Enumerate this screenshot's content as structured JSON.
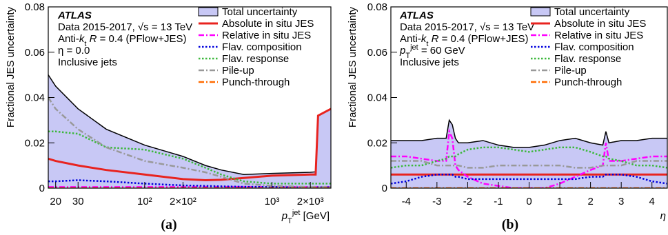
{
  "chart_data": [
    {
      "type": "line",
      "panel_label": "(a)",
      "y_label": "Fractional JES uncertainty",
      "x_label": [
        {
          "text": "p",
          "style": "i"
        },
        {
          "text": "T",
          "style": "sub"
        },
        {
          "text": "jet",
          "style": "sup"
        },
        {
          "text": " [GeV]"
        }
      ],
      "annotations": [
        [
          {
            "text": "ATLAS",
            "style": "bi"
          }
        ],
        "Data 2015-2017, √s = 13 TeV",
        [
          {
            "text": "Anti-"
          },
          {
            "text": "k",
            "style": "i"
          },
          {
            "text": "t",
            "style": "sub"
          },
          {
            "text": " R",
            "style": "i"
          },
          {
            "text": " = 0.4 (PFlow+JES)"
          }
        ],
        "η = 0.0",
        "Inclusive jets"
      ],
      "xscale": "log",
      "xlim": [
        17.5,
        2900
      ],
      "xticks": [
        20,
        30,
        {
          "value": 100,
          "label": "10²"
        },
        {
          "value": 200,
          "label": "2×10²"
        },
        {
          "value": 1000,
          "label": "10³"
        },
        {
          "value": 2000,
          "label": "2×10³"
        }
      ],
      "ylim": [
        0,
        0.08
      ],
      "yticks": [
        0,
        0.02,
        0.04,
        0.06,
        0.08
      ],
      "x": [
        17.5,
        20,
        30,
        50,
        100,
        200,
        300,
        400,
        600,
        1000,
        2000,
        2200,
        2300,
        2900
      ],
      "series": [
        {
          "name": "Total uncertainty",
          "color": "#000000",
          "fill": "#c8c8f5",
          "dash": "solid",
          "values": [
            0.05,
            0.045,
            0.035,
            0.026,
            0.019,
            0.014,
            0.01,
            0.008,
            0.006,
            0.0065,
            0.007,
            0.0072,
            0.032,
            0.035
          ]
        },
        {
          "name": "Absolute in situ JES",
          "color": "#e8231f",
          "dash": "solid",
          "values": [
            0.013,
            0.012,
            0.01,
            0.008,
            0.006,
            0.004,
            0.0035,
            0.0037,
            0.0045,
            0.0055,
            0.006,
            0.006,
            0.032,
            0.035
          ]
        },
        {
          "name": "Relative in situ JES",
          "color": "#ff00ff",
          "dash": "dashdot",
          "values": [
            0.0005,
            0.0005,
            0.0005,
            0.0005,
            0.0005,
            0.0005,
            0.0005,
            0.0005,
            0.0005,
            0.0005,
            0.0005,
            0.0005,
            0.0005,
            0.0005
          ]
        },
        {
          "name": "Flav. composition",
          "color": "#0000dd",
          "dash": "dotted",
          "values": [
            0.003,
            0.003,
            0.0035,
            0.003,
            0.002,
            0.0012,
            0.001,
            0.0008,
            0.0006,
            0.0005,
            0.0004,
            0.0004,
            0.0004,
            0.0004
          ]
        },
        {
          "name": "Flav. response",
          "color": "#3cb83c",
          "dash": "dotted",
          "values": [
            0.025,
            0.025,
            0.024,
            0.018,
            0.017,
            0.013,
            0.009,
            0.006,
            0.003,
            0.002,
            0.002,
            0.002,
            0.002,
            0.002
          ]
        },
        {
          "name": "Pile-up",
          "color": "#999999",
          "dash": "dashdot",
          "values": [
            0.04,
            0.035,
            0.026,
            0.018,
            0.012,
            0.009,
            0.007,
            0.005,
            0.002,
            0.001,
            0.0005,
            0.0005,
            0.0005,
            0.0005
          ]
        },
        {
          "name": "Punch-through",
          "color": "#ff6a00",
          "dash": "dashdot",
          "values": [
            0,
            0,
            0,
            0,
            0,
            0,
            0,
            0,
            0,
            0,
            0,
            0,
            0,
            0
          ]
        }
      ]
    },
    {
      "type": "line",
      "panel_label": "(b)",
      "y_label": "Fractional JES uncertainty",
      "x_label": [
        {
          "text": "η",
          "style": "i"
        }
      ],
      "annotations": [
        [
          {
            "text": "ATLAS",
            "style": "bi"
          }
        ],
        "Data 2015-2017, √s = 13 TeV",
        [
          {
            "text": "Anti-"
          },
          {
            "text": "k",
            "style": "i"
          },
          {
            "text": "t",
            "style": "sub"
          },
          {
            "text": " R",
            "style": "i"
          },
          {
            "text": " = 0.4 (PFlow+JES)"
          }
        ],
        [
          {
            "text": "p",
            "style": "i"
          },
          {
            "text": "T",
            "style": "sub"
          },
          {
            "text": "jet",
            "style": "sup"
          },
          {
            "text": " = 60 GeV"
          }
        ],
        "Inclusive jets"
      ],
      "xscale": "linear",
      "xlim": [
        -4.5,
        4.5
      ],
      "xticks": [
        -4,
        -3,
        -2,
        -1,
        0,
        1,
        2,
        3,
        4
      ],
      "ylim": [
        0,
        0.08
      ],
      "yticks": [
        0,
        0.02,
        0.04,
        0.06,
        0.08
      ],
      "x": [
        -4.5,
        -4,
        -3.5,
        -3,
        -2.7,
        -2.6,
        -2.5,
        -2.4,
        -2.3,
        -2,
        -1.5,
        -1,
        -0.5,
        0,
        0.5,
        1,
        1.5,
        2,
        2.4,
        2.5,
        2.6,
        3,
        3.5,
        4,
        4.5
      ],
      "series": [
        {
          "name": "Total uncertainty",
          "color": "#000000",
          "fill": "#c8c8f5",
          "dash": "solid",
          "values": [
            0.021,
            0.021,
            0.021,
            0.022,
            0.022,
            0.03,
            0.028,
            0.022,
            0.02,
            0.02,
            0.021,
            0.019,
            0.018,
            0.018,
            0.019,
            0.021,
            0.022,
            0.02,
            0.019,
            0.025,
            0.02,
            0.021,
            0.021,
            0.022,
            0.022
          ]
        },
        {
          "name": "Absolute in situ JES",
          "color": "#e8231f",
          "dash": "solid",
          "values": [
            0.006,
            0.006,
            0.006,
            0.006,
            0.006,
            0.006,
            0.006,
            0.006,
            0.006,
            0.006,
            0.006,
            0.006,
            0.006,
            0.006,
            0.006,
            0.006,
            0.006,
            0.006,
            0.006,
            0.006,
            0.006,
            0.006,
            0.006,
            0.006,
            0.006
          ]
        },
        {
          "name": "Relative in situ JES",
          "color": "#ff00ff",
          "dash": "dashdot",
          "values": [
            0.014,
            0.014,
            0.013,
            0.012,
            0.012,
            0.025,
            0.022,
            0.01,
            0.008,
            0.005,
            0.002,
            0.001,
            0,
            0,
            0,
            0.002,
            0.005,
            0.008,
            0.01,
            0.02,
            0.012,
            0.012,
            0.013,
            0.014,
            0.014
          ]
        },
        {
          "name": "Flav. composition",
          "color": "#0000dd",
          "dash": "dotted",
          "values": [
            0.002,
            0.003,
            0.005,
            0.006,
            0.006,
            0.006,
            0.006,
            0.005,
            0.005,
            0.004,
            0.004,
            0.004,
            0.004,
            0.004,
            0.004,
            0.004,
            0.004,
            0.005,
            0.005,
            0.006,
            0.006,
            0.006,
            0.005,
            0.003,
            0.002
          ]
        },
        {
          "name": "Flav. response",
          "color": "#3cb83c",
          "dash": "dotted",
          "values": [
            0.009,
            0.01,
            0.01,
            0.012,
            0.013,
            0.014,
            0.014,
            0.014,
            0.015,
            0.017,
            0.018,
            0.018,
            0.017,
            0.016,
            0.017,
            0.018,
            0.018,
            0.016,
            0.014,
            0.014,
            0.013,
            0.012,
            0.01,
            0.01,
            0.009
          ]
        },
        {
          "name": "Pile-up",
          "color": "#999999",
          "dash": "dashdot",
          "values": [
            0.012,
            0.012,
            0.012,
            0.01,
            0.01,
            0.01,
            0.01,
            0.01,
            0.01,
            0.009,
            0.009,
            0.01,
            0.01,
            0.01,
            0.01,
            0.01,
            0.009,
            0.009,
            0.01,
            0.01,
            0.01,
            0.01,
            0.012,
            0.012,
            0.012
          ]
        },
        {
          "name": "Punch-through",
          "color": "#ff6a00",
          "dash": "dashdot",
          "values": [
            0,
            0,
            0,
            0,
            0,
            0,
            0,
            0,
            0,
            0,
            0,
            0,
            0,
            0,
            0,
            0,
            0,
            0,
            0,
            0,
            0,
            0,
            0,
            0,
            0
          ]
        }
      ]
    }
  ]
}
